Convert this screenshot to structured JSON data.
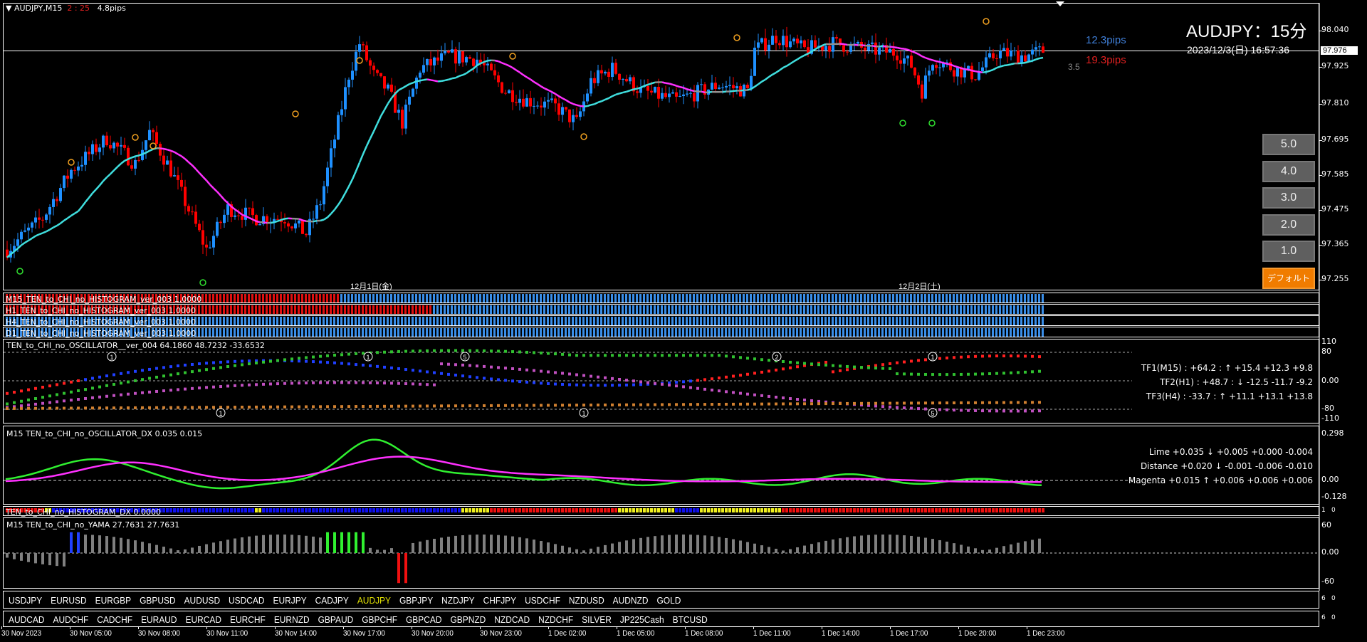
{
  "header": {
    "symbol_tf": "AUDJPY,M15",
    "countdown": "2 : 25",
    "spread": "4.8pips",
    "big_title": "AUDJPY：15分",
    "datetime": "2023/12/3(日) 16:57:36",
    "range_up": "12.3pips",
    "range_down": "19.3pips",
    "ratio": "3.5"
  },
  "price_axis": {
    "labels": [
      "98.040",
      "97.925",
      "97.810",
      "97.695",
      "97.585",
      "97.475",
      "97.365",
      "97.255"
    ],
    "current": "97.976"
  },
  "date_separators": [
    "12月1日(金)",
    "12月2日(土)"
  ],
  "zoom_buttons": [
    "5.0",
    "4.0",
    "3.0",
    "2.0",
    "1.0",
    "デフォルト"
  ],
  "price_path": [
    [
      0,
      97.35
    ],
    [
      10,
      97.45
    ],
    [
      18,
      97.6
    ],
    [
      28,
      97.7
    ],
    [
      36,
      97.62
    ],
    [
      40,
      97.72
    ],
    [
      46,
      97.6
    ],
    [
      52,
      97.45
    ],
    [
      56,
      97.35
    ],
    [
      62,
      97.48
    ],
    [
      70,
      97.45
    ],
    [
      78,
      97.45
    ],
    [
      84,
      97.4
    ],
    [
      88,
      97.5
    ],
    [
      92,
      97.7
    ],
    [
      96,
      97.9
    ],
    [
      99,
      98.0
    ],
    [
      103,
      97.9
    ],
    [
      107,
      97.85
    ],
    [
      111,
      97.75
    ],
    [
      116,
      97.92
    ],
    [
      124,
      97.96
    ],
    [
      132,
      97.95
    ],
    [
      140,
      97.85
    ],
    [
      146,
      97.82
    ],
    [
      154,
      97.8
    ],
    [
      160,
      97.75
    ],
    [
      164,
      97.88
    ],
    [
      170,
      97.92
    ],
    [
      178,
      97.85
    ],
    [
      188,
      97.82
    ],
    [
      200,
      97.87
    ],
    [
      208,
      97.85
    ],
    [
      210,
      97.98
    ],
    [
      216,
      98.02
    ],
    [
      224,
      97.98
    ],
    [
      232,
      98.0
    ],
    [
      242,
      97.98
    ],
    [
      250,
      97.97
    ],
    [
      254,
      97.93
    ],
    [
      257,
      97.85
    ],
    [
      260,
      97.95
    ],
    [
      266,
      97.92
    ],
    [
      272,
      97.9
    ],
    [
      278,
      97.97
    ],
    [
      286,
      97.96
    ],
    [
      292,
      97.98
    ]
  ],
  "histograms": [
    {
      "label": "M15_TEN_to_CHI_no_HISTOGRAM_ver_003 1.0000",
      "red_until_bar": 94
    },
    {
      "label": "H1_TEN_to_CHI_no_HISTOGRAM_ver_003 1.0000",
      "red_until_bar": 120
    },
    {
      "label": "H4_TEN_to_CHI_no_HISTOGRAM_ver_003 1.0000",
      "red_until_bar": 0
    },
    {
      "label": "D1_TEN_to_CHI_no_HISTOGRAM_ver_003 1.0000",
      "red_until_bar": 0
    }
  ],
  "histogram_axis": [
    "1",
    "0"
  ],
  "oscillator": {
    "label": "TEN_to_CHI_no_OSCILLATOR__ver_004 64.1860 48.7232 -33.6532",
    "axis": [
      "110",
      "80",
      "0.00",
      "-80",
      "-110"
    ],
    "tf_rows": [
      {
        "text": "TF1(M15) : +64.2 : ↑  +15.4 +12.3 +9.8",
        "color": "#3f7fd8"
      },
      {
        "text": "TF2(H1) : +48.7 : ↓  -12.5 -11.7 -9.2",
        "color": "#d42020"
      },
      {
        "text": "TF3(H4) : -33.7 : ↑  +11.1 +13.1 +13.8",
        "color": "#3f7fd8"
      }
    ],
    "markers": [
      "1",
      "1",
      "1",
      "5",
      "1",
      "2",
      "1",
      "5",
      "1"
    ]
  },
  "oscillator_dx": {
    "label": "M15 TEN_to_CHI_no_OSCILLATOR_DX  0.035 0.015",
    "axis": [
      "0.298",
      "0.00",
      "-0.128"
    ],
    "rows": [
      {
        "text": "Lime +0.035 ↓  +0.005 +0.000 -0.004",
        "color": "#d42020"
      },
      {
        "text": "Distance +0.020 ↓  -0.001 -0.006 -0.010",
        "color": "#d42020"
      },
      {
        "text": "Magenta +0.015 ↑  +0.006 +0.006 +0.006",
        "color": "#3f7fd8"
      }
    ]
  },
  "histogram_dx": {
    "label": "TEN_to_CHI_no_HISTOGRAM_DX 0.0000",
    "axis": [
      "1",
      "0"
    ]
  },
  "yama": {
    "label": "M15  TEN_to_CHI_no_YAMA  27.7631 27.7631",
    "axis": [
      "60",
      "0.00",
      "-60"
    ]
  },
  "symbols_row1": [
    "USDJPY",
    "EURUSD",
    "EURGBP",
    "GBPUSD",
    "AUDUSD",
    "USDCAD",
    "EURJPY",
    "CADJPY",
    "AUDJPY",
    "GBPJPY",
    "NZDJPY",
    "CHFJPY",
    "USDCHF",
    "NZDUSD",
    "AUDNZD",
    "GOLD"
  ],
  "symbols_row2": [
    "AUDCAD",
    "AUDCHF",
    "CADCHF",
    "EURAUD",
    "EURCAD",
    "EURCHF",
    "EURNZD",
    "GBPAUD",
    "GBPCHF",
    "GBPCAD",
    "GBPNZD",
    "NZDCAD",
    "NZDCHF",
    "SILVER",
    "JP225Cash",
    "BTCUSD"
  ],
  "active_symbol": "AUDJPY",
  "symbol_axis": [
    "6",
    "0"
  ],
  "time_axis": [
    "30 Nov 2023",
    "30 Nov 05:00",
    "30 Nov 08:00",
    "30 Nov 11:00",
    "30 Nov 14:00",
    "30 Nov 17:00",
    "30 Nov 20:00",
    "30 Nov 23:00",
    "1 Dec 02:00",
    "1 Dec 05:00",
    "1 Dec 08:00",
    "1 Dec 11:00",
    "1 Dec 14:00",
    "1 Dec 17:00",
    "1 Dec 20:00",
    "1 Dec 23:00"
  ],
  "colors": {
    "bull": "#1e90ff",
    "bear": "#ff0000",
    "ma_up": "#40e0e0",
    "ma_down": "#ff30ff",
    "ma_flat": "#909090",
    "accent_button": "#f07c00",
    "active_symbol": "#e0e000"
  }
}
